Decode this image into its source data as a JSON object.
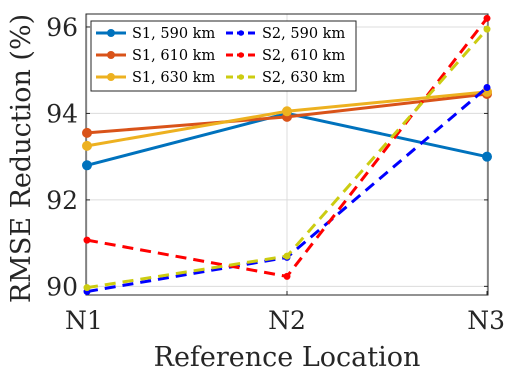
{
  "chart_data": {
    "type": "line",
    "categories": [
      "N1",
      "N2",
      "N3"
    ],
    "xlabel": "Reference Location",
    "ylabel": "RMSE Reduction (%)",
    "ylim": [
      89.8,
      96.3
    ],
    "yticks": [
      "90",
      "92",
      "94",
      "96"
    ],
    "grid": true,
    "legend_position": "top-left",
    "legend_columns": 2,
    "series": [
      {
        "name": "S1, 590 km",
        "values": [
          92.8,
          94.0,
          93.0
        ],
        "color": "#0072BD",
        "style": "solid",
        "marker": "circle"
      },
      {
        "name": "S1, 610 km",
        "values": [
          93.55,
          93.92,
          94.45
        ],
        "color": "#D95319",
        "style": "solid",
        "marker": "circle"
      },
      {
        "name": "S1, 630 km",
        "values": [
          93.25,
          94.05,
          94.5
        ],
        "color": "#EDB120",
        "style": "solid",
        "marker": "circle"
      },
      {
        "name": "S2, 590 km",
        "values": [
          89.88,
          90.67,
          94.6
        ],
        "color": "#0000FF",
        "style": "dashed",
        "marker": "dot"
      },
      {
        "name": "S2, 610 km",
        "values": [
          91.07,
          90.23,
          96.2
        ],
        "color": "#FF0000",
        "style": "dashed",
        "marker": "dot"
      },
      {
        "name": "S2, 630 km",
        "values": [
          89.97,
          90.7,
          95.95
        ],
        "color": "#CCCC11",
        "style": "dashed",
        "marker": "dot"
      }
    ]
  }
}
